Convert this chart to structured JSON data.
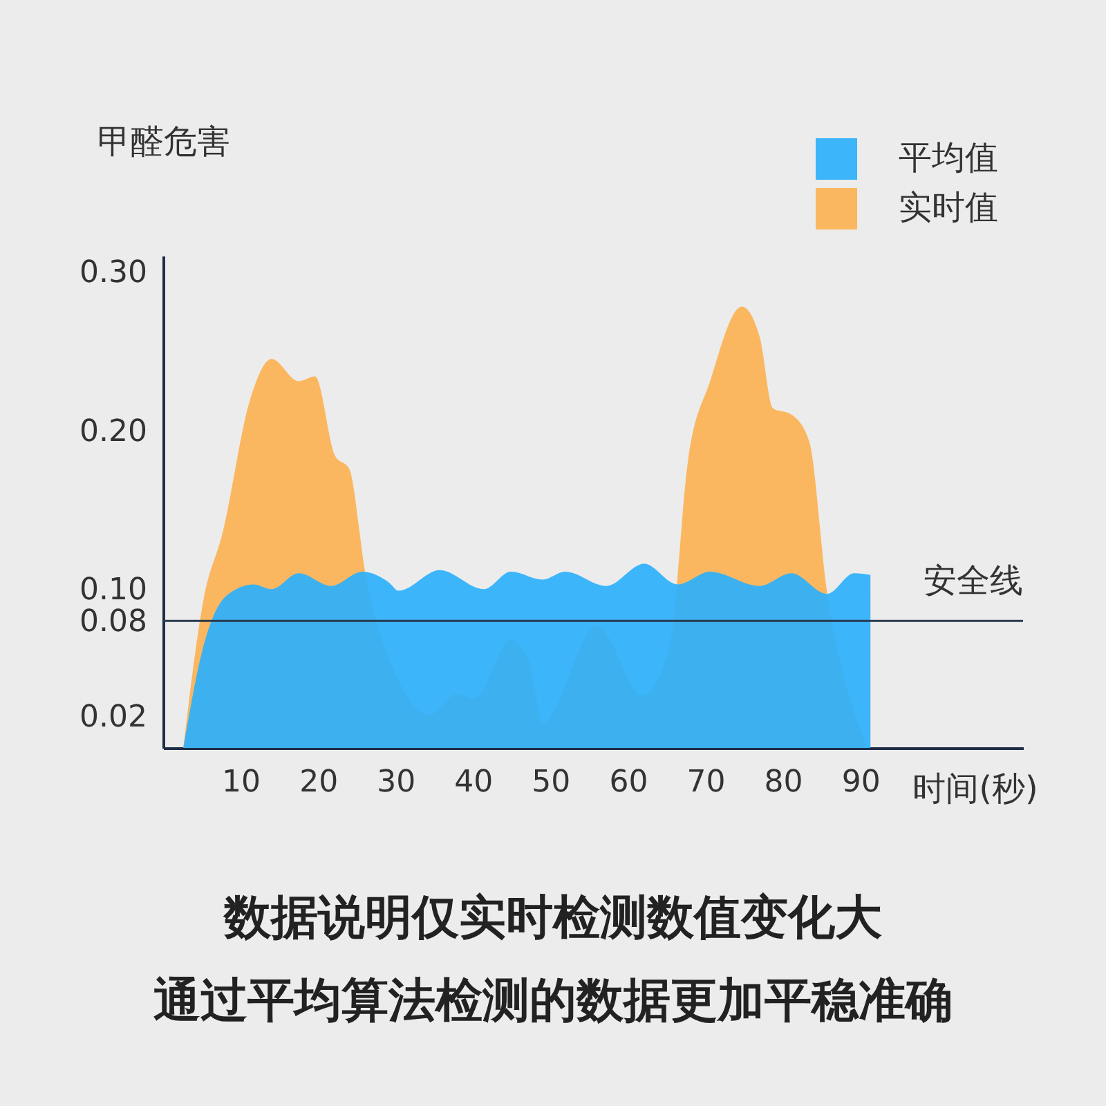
{
  "chart_data": {
    "type": "area",
    "xlabel": "时间(秒)",
    "ylabel": "甲醛危害",
    "xlim": [
      0,
      111
    ],
    "xticks": [
      10,
      20,
      30,
      40,
      50,
      60,
      70,
      80,
      90
    ],
    "ylim": [
      0,
      0.31
    ],
    "yticks": [
      0.02,
      0.08,
      {
        "value": 0.1,
        "label": "0.10"
      },
      {
        "value": 0.2,
        "label": "0.20"
      },
      {
        "value": 0.3,
        "label": "0.30"
      }
    ],
    "legend": "top right",
    "grid": false,
    "series": [
      {
        "name": "平均值",
        "color": "#2db0fc",
        "x": [
          2.6,
          5.2,
          8.2,
          11.7,
          14,
          17.5,
          21.7,
          25.7,
          29.2,
          30.4,
          35.7,
          41.4,
          44.9,
          49,
          51.9,
          57.2,
          62.1,
          66.4,
          70.6,
          77,
          81.1,
          85.7,
          89.2,
          91.3
        ],
        "values": [
          0,
          0.064,
          0.096,
          0.103,
          0.1,
          0.11,
          0.102,
          0.111,
          0.104,
          0.099,
          0.112,
          0.1,
          0.111,
          0.106,
          0.111,
          0.102,
          0.116,
          0.103,
          0.111,
          0.102,
          0.11,
          0.097,
          0.11,
          0.109
        ]
      },
      {
        "name": "实时值",
        "color": "#fcb254",
        "x": [
          2.6,
          5.2,
          7.7,
          11.2,
          14,
          17.5,
          19.6,
          22.2,
          24,
          26.2,
          29.7,
          34.4,
          37.9,
          40.2,
          44.9,
          47.2,
          49,
          56,
          61.9,
          65.4,
          67.7,
          70.6,
          74.7,
          77,
          78.7,
          81.1,
          83.4,
          85.7,
          88.1,
          90.9
        ],
        "values": [
          0,
          0.093,
          0.136,
          0.219,
          0.245,
          0.231,
          0.234,
          0.184,
          0.176,
          0.107,
          0.05,
          0.021,
          0.034,
          0.031,
          0.068,
          0.055,
          0.016,
          0.077,
          0.033,
          0.064,
          0.179,
          0.231,
          0.278,
          0.259,
          0.214,
          0.21,
          0.193,
          0.098,
          0.041,
          0
        ]
      }
    ],
    "ref_lines": [
      {
        "axis": "y",
        "value": 0.08,
        "label": "安全线",
        "color": "#2a3a4f"
      }
    ],
    "annotations": [
      "数据说明仅实时检测数值变化大",
      "通过平均算法检测的数据更加平稳准确"
    ]
  }
}
